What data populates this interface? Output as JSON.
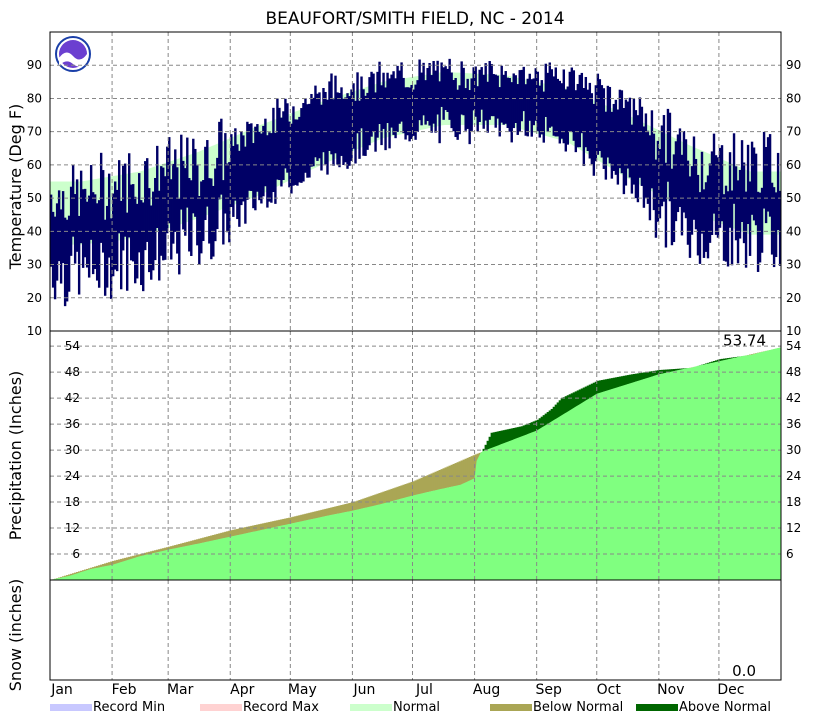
{
  "chart_data": {
    "type": "line",
    "title": "BEAUFORT/SMITH FIELD, NC - 2014",
    "months": [
      "Jan",
      "Feb",
      "Mar",
      "Apr",
      "May",
      "Jun",
      "Jul",
      "Aug",
      "Sep",
      "Oct",
      "Nov",
      "Dec"
    ],
    "temperature": {
      "ylabel": "Temperature (Deg F)",
      "ylim": [
        10,
        100
      ],
      "yticks": [
        20,
        30,
        40,
        50,
        60,
        70,
        80,
        90
      ],
      "normal_high_by_month": [
        55,
        58,
        64,
        72,
        79,
        85,
        88,
        87,
        83,
        75,
        66,
        58
      ],
      "normal_low_by_month": [
        36,
        38,
        44,
        51,
        60,
        68,
        72,
        72,
        67,
        56,
        46,
        39
      ],
      "observed_high_by_month": [
        49,
        55,
        58,
        70,
        80,
        84,
        86,
        85,
        85,
        76,
        60,
        58
      ],
      "observed_low_by_month": [
        30,
        33,
        40,
        52,
        62,
        70,
        74,
        74,
        70,
        56,
        40,
        40
      ]
    },
    "precipitation": {
      "ylabel": "Precipitation (Inches)",
      "ylim": [
        0,
        57.5
      ],
      "yticks": [
        6,
        12,
        18,
        24,
        30,
        36,
        42,
        48,
        54
      ],
      "total_label": "53.74",
      "cumulative_normal": [
        [
          0,
          0
        ],
        [
          31,
          4.4
        ],
        [
          59,
          7.7
        ],
        [
          90,
          11.5
        ],
        [
          120,
          14.5
        ],
        [
          151,
          18
        ],
        [
          181,
          22.8
        ],
        [
          212,
          29
        ],
        [
          243,
          34.5
        ],
        [
          273,
          43
        ],
        [
          304,
          47.5
        ],
        [
          334,
          50.5
        ],
        [
          365,
          53.74
        ]
      ],
      "cumulative_observed": [
        [
          0,
          0
        ],
        [
          10,
          1.0
        ],
        [
          20,
          2.5
        ],
        [
          31,
          3.5
        ],
        [
          45,
          5.5
        ],
        [
          59,
          7.0
        ],
        [
          75,
          8.5
        ],
        [
          90,
          10.0
        ],
        [
          100,
          11.0
        ],
        [
          120,
          13.0
        ],
        [
          140,
          15.0
        ],
        [
          151,
          16.0
        ],
        [
          165,
          17.5
        ],
        [
          181,
          19.5
        ],
        [
          195,
          21.0
        ],
        [
          205,
          22.0
        ],
        [
          212,
          23.5
        ],
        [
          213,
          27.5
        ],
        [
          220,
          34.0
        ],
        [
          235,
          35.5
        ],
        [
          243,
          37.0
        ],
        [
          250,
          39.5
        ],
        [
          255,
          42.0
        ],
        [
          273,
          46.0
        ],
        [
          290,
          47.5
        ],
        [
          304,
          48.5
        ],
        [
          320,
          49.0
        ],
        [
          334,
          51.0
        ],
        [
          350,
          52.0
        ],
        [
          365,
          53.74
        ]
      ]
    },
    "snow": {
      "ylabel": "Snow (inches)",
      "total_label": "0.0"
    },
    "legend": [
      "Record Min",
      "Record Max",
      "Normal",
      "Below Normal",
      "Above Normal"
    ],
    "colors": {
      "record_min": "#c8c8ff",
      "record_max": "#ffd2d2",
      "normal": "#ccffcc",
      "below_normal": "#aaa655",
      "above_normal": "#006600",
      "observed_temp": "#000066",
      "normal_precip": "#80ff80"
    },
    "grid": true
  }
}
